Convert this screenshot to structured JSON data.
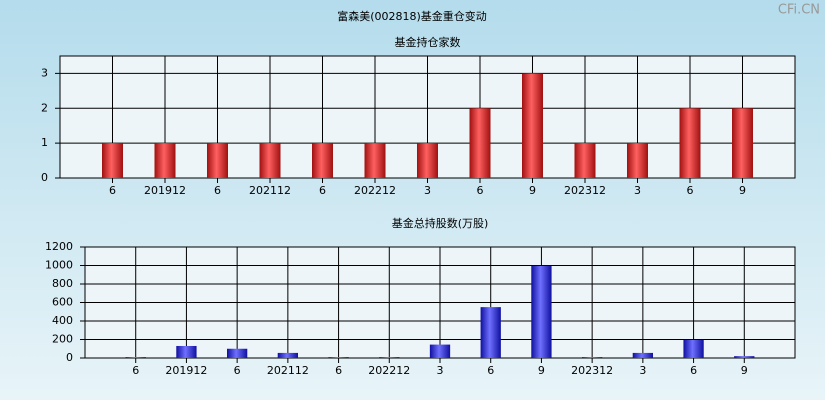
{
  "title": "富森美(002818)基金重仓变动",
  "watermark": "CFi.CN",
  "chart_data": [
    {
      "type": "bar",
      "title": "基金持仓家数",
      "categories": [
        "6",
        "201912",
        "6",
        "202112",
        "6",
        "202212",
        "3",
        "6",
        "9",
        "202312",
        "3",
        "6",
        "9"
      ],
      "values": [
        1,
        1,
        1,
        1,
        1,
        1,
        1,
        2,
        3,
        1,
        1,
        2,
        2
      ],
      "color": "#e02020",
      "ylim": [
        0,
        3.5
      ],
      "yticks": [
        0,
        1,
        2,
        3
      ],
      "grid": true
    },
    {
      "type": "bar",
      "title": "基金总持股数(万股)",
      "categories": [
        "6",
        "201912",
        "6",
        "202112",
        "6",
        "202212",
        "3",
        "6",
        "9",
        "202312",
        "3",
        "6",
        "9"
      ],
      "values": [
        10,
        130,
        100,
        55,
        10,
        10,
        145,
        550,
        995,
        10,
        55,
        195,
        20
      ],
      "color": "#2020e0",
      "ylim": [
        0,
        1200
      ],
      "yticks": [
        0,
        200,
        400,
        600,
        800,
        1000,
        1200
      ],
      "grid": true
    }
  ]
}
